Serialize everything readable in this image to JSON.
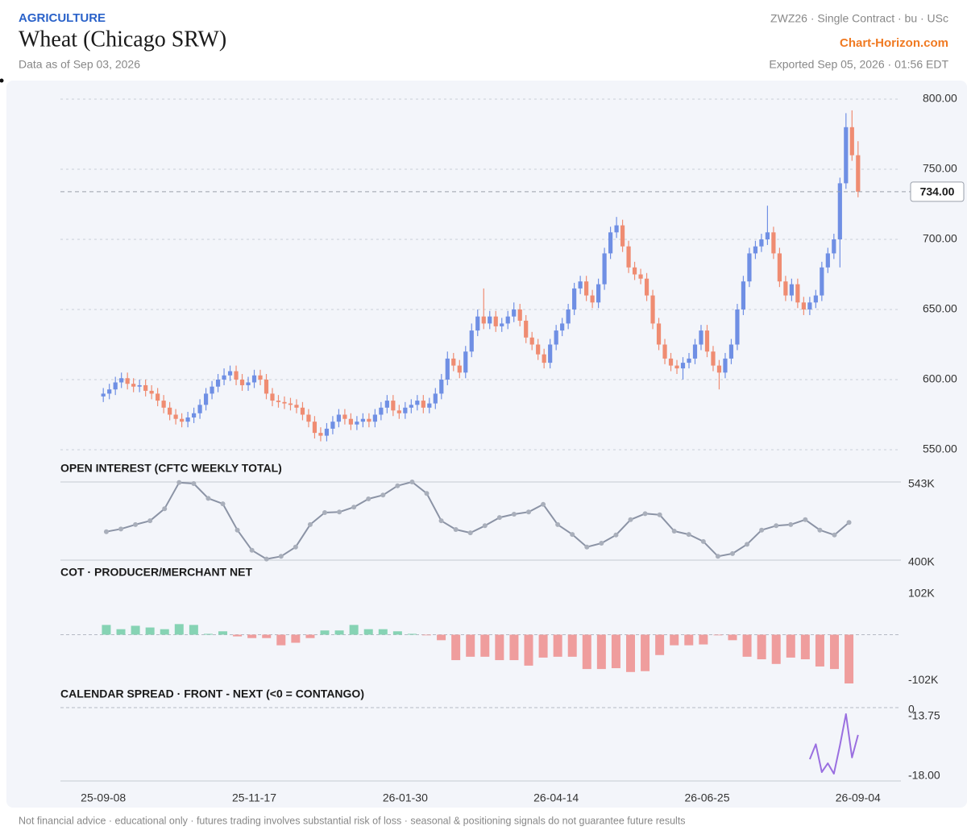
{
  "header": {
    "category": "AGRICULTURE",
    "title": "Wheat (Chicago SRW)",
    "subtitle": "Data as of Sep 03, 2026",
    "contract": "ZWZ26 · Single Contract · bu · USc",
    "brand": "Chart-Horizon.com",
    "exported": "Exported Sep 05, 2026 · 01:56 EDT"
  },
  "footer": "Not financial advice · educational only · futures trading involves substantial risk of loss · seasonal & positioning signals do not guarantee future results",
  "chart_data": [
    {
      "type": "candlestick",
      "up_color": "#6f8fe4",
      "down_color": "#ef8c72",
      "grid": true,
      "xlim": [
        -7.1,
        132.1
      ],
      "xticks": [
        {
          "value": 0,
          "label": "25-09-08"
        },
        {
          "value": 25,
          "label": "25-11-17"
        },
        {
          "value": 50,
          "label": "26-01-30"
        },
        {
          "value": 75,
          "label": "26-04-14"
        },
        {
          "value": 100,
          "label": "26-06-25"
        },
        {
          "value": 125,
          "label": "26-09-04"
        }
      ],
      "ylim": [
        550,
        800
      ],
      "yticks": [
        {
          "value": 550,
          "label": "550.00"
        },
        {
          "value": 600,
          "label": "600.00"
        },
        {
          "value": 650,
          "label": "650.00"
        },
        {
          "value": 700,
          "label": "700.00"
        },
        {
          "value": 750,
          "label": "750.00"
        },
        {
          "value": 800,
          "label": "800.00"
        }
      ],
      "last": {
        "value": 734,
        "label": "734.00"
      },
      "candles": [
        [
          588,
          594,
          584,
          590
        ],
        [
          590,
          597,
          586,
          593
        ],
        [
          593,
          602,
          589,
          598
        ],
        [
          598,
          605,
          594,
          601
        ],
        [
          601,
          605,
          593,
          597
        ],
        [
          597,
          601,
          591,
          595
        ],
        [
          595,
          600,
          591,
          596
        ],
        [
          596,
          600,
          588,
          592
        ],
        [
          592,
          596,
          586,
          590
        ],
        [
          590,
          594,
          581,
          585
        ],
        [
          585,
          589,
          576,
          580
        ],
        [
          580,
          584,
          571,
          575
        ],
        [
          575,
          579,
          568,
          572
        ],
        [
          572,
          576,
          566,
          570
        ],
        [
          570,
          577,
          566,
          573
        ],
        [
          573,
          580,
          569,
          576
        ],
        [
          576,
          586,
          572,
          582
        ],
        [
          582,
          594,
          578,
          590
        ],
        [
          590,
          599,
          586,
          595
        ],
        [
          595,
          604,
          591,
          600
        ],
        [
          600,
          608,
          596,
          603
        ],
        [
          603,
          610,
          599,
          606
        ],
        [
          606,
          610,
          596,
          600
        ],
        [
          600,
          604,
          592,
          596
        ],
        [
          596,
          602,
          592,
          598
        ],
        [
          598,
          607,
          594,
          603
        ],
        [
          603,
          607,
          596,
          600
        ],
        [
          600,
          604,
          586,
          590
        ],
        [
          590,
          594,
          581,
          585
        ],
        [
          585,
          589,
          580,
          584
        ],
        [
          584,
          588,
          579,
          583
        ],
        [
          583,
          587,
          578,
          582
        ],
        [
          582,
          586,
          576,
          580
        ],
        [
          580,
          584,
          571,
          575
        ],
        [
          575,
          579,
          566,
          570
        ],
        [
          570,
          574,
          558,
          562
        ],
        [
          562,
          566,
          556,
          560
        ],
        [
          560,
          569,
          556,
          565
        ],
        [
          565,
          574,
          561,
          570
        ],
        [
          570,
          579,
          566,
          575
        ],
        [
          575,
          579,
          568,
          572
        ],
        [
          572,
          576,
          564,
          568
        ],
        [
          568,
          574,
          564,
          570
        ],
        [
          570,
          576,
          566,
          572
        ],
        [
          572,
          576,
          566,
          570
        ],
        [
          570,
          579,
          566,
          575
        ],
        [
          575,
          584,
          571,
          580
        ],
        [
          580,
          589,
          576,
          585
        ],
        [
          585,
          589,
          574,
          578
        ],
        [
          578,
          582,
          572,
          576
        ],
        [
          576,
          584,
          572,
          580
        ],
        [
          580,
          586,
          576,
          582
        ],
        [
          582,
          589,
          578,
          585
        ],
        [
          585,
          589,
          576,
          580
        ],
        [
          580,
          587,
          576,
          583
        ],
        [
          583,
          594,
          579,
          590
        ],
        [
          590,
          604,
          586,
          600
        ],
        [
          600,
          620,
          596,
          615
        ],
        [
          615,
          619,
          606,
          610
        ],
        [
          610,
          614,
          601,
          605
        ],
        [
          605,
          624,
          601,
          620
        ],
        [
          620,
          640,
          616,
          635
        ],
        [
          635,
          650,
          631,
          645
        ],
        [
          645,
          665,
          636,
          640
        ],
        [
          640,
          649,
          636,
          645
        ],
        [
          645,
          649,
          634,
          638
        ],
        [
          638,
          644,
          634,
          640
        ],
        [
          640,
          649,
          636,
          645
        ],
        [
          645,
          655,
          641,
          650
        ],
        [
          650,
          654,
          638,
          642
        ],
        [
          642,
          646,
          626,
          630
        ],
        [
          630,
          634,
          621,
          625
        ],
        [
          625,
          629,
          614,
          618
        ],
        [
          618,
          622,
          608,
          612
        ],
        [
          612,
          629,
          608,
          625
        ],
        [
          625,
          639,
          621,
          635
        ],
        [
          635,
          644,
          631,
          640
        ],
        [
          640,
          654,
          636,
          650
        ],
        [
          650,
          669,
          646,
          665
        ],
        [
          665,
          674,
          661,
          670
        ],
        [
          670,
          674,
          656,
          660
        ],
        [
          660,
          664,
          651,
          655
        ],
        [
          655,
          672,
          651,
          668
        ],
        [
          668,
          694,
          664,
          690
        ],
        [
          690,
          709,
          686,
          705
        ],
        [
          705,
          716,
          701,
          710
        ],
        [
          710,
          714,
          691,
          695
        ],
        [
          695,
          699,
          676,
          680
        ],
        [
          680,
          684,
          671,
          675
        ],
        [
          675,
          679,
          668,
          672
        ],
        [
          672,
          676,
          656,
          660
        ],
        [
          660,
          664,
          636,
          640
        ],
        [
          640,
          644,
          621,
          625
        ],
        [
          625,
          629,
          611,
          615
        ],
        [
          615,
          619,
          606,
          610
        ],
        [
          610,
          614,
          604,
          608
        ],
        [
          608,
          616,
          600,
          612
        ],
        [
          612,
          619,
          608,
          615
        ],
        [
          615,
          629,
          611,
          625
        ],
        [
          625,
          639,
          621,
          635
        ],
        [
          635,
          639,
          616,
          620
        ],
        [
          620,
          624,
          606,
          610
        ],
        [
          610,
          614,
          593,
          605
        ],
        [
          605,
          619,
          601,
          615
        ],
        [
          615,
          629,
          611,
          625
        ],
        [
          625,
          654,
          621,
          650
        ],
        [
          650,
          674,
          646,
          670
        ],
        [
          670,
          694,
          666,
          690
        ],
        [
          690,
          699,
          686,
          695
        ],
        [
          695,
          704,
          691,
          700
        ],
        [
          700,
          724,
          696,
          705
        ],
        [
          705,
          709,
          686,
          690
        ],
        [
          690,
          694,
          666,
          670
        ],
        [
          670,
          674,
          656,
          660
        ],
        [
          660,
          672,
          656,
          668
        ],
        [
          668,
          672,
          651,
          655
        ],
        [
          655,
          659,
          646,
          650
        ],
        [
          650,
          659,
          646,
          655
        ],
        [
          655,
          664,
          651,
          660
        ],
        [
          660,
          684,
          656,
          680
        ],
        [
          680,
          694,
          676,
          690
        ],
        [
          690,
          704,
          686,
          700
        ],
        [
          700,
          744,
          680,
          740
        ],
        [
          740,
          790,
          736,
          780
        ],
        [
          780,
          792,
          756,
          760
        ],
        [
          760,
          770,
          730,
          734
        ]
      ]
    },
    {
      "type": "line",
      "title": "OPEN INTEREST (CFTC WEEKLY TOTAL)",
      "color": "#8b93a5",
      "grid": true,
      "ylim": [
        400000,
        543000
      ],
      "yticks": [
        {
          "value": 543000,
          "label": "543K"
        },
        {
          "value": 400000,
          "label": "400K"
        }
      ],
      "values": [
        452000,
        457000,
        465000,
        472000,
        494000,
        542000,
        540000,
        513000,
        503000,
        455000,
        418000,
        402000,
        407000,
        424000,
        465000,
        487000,
        488000,
        497000,
        512000,
        519000,
        536000,
        543000,
        522000,
        472000,
        456000,
        450000,
        463000,
        478000,
        484000,
        488000,
        502000,
        465000,
        447000,
        424000,
        431000,
        446000,
        474000,
        485000,
        483000,
        453000,
        447000,
        434000,
        407000,
        412000,
        429000,
        455000,
        463000,
        465000,
        474000,
        455000,
        446000,
        469000
      ]
    },
    {
      "type": "bar",
      "title": "COT · PRODUCER/MERCHANT NET",
      "pos_color": "#86d3b4",
      "neg_color": "#ef9d9d",
      "zero_line": true,
      "ylim": [
        -115000,
        115000
      ],
      "yticks": [
        {
          "value": 102000,
          "label": "102K"
        },
        {
          "value": -102000,
          "label": "-102K"
        }
      ],
      "values": [
        23000,
        13000,
        21000,
        17000,
        13000,
        25000,
        23000,
        2000,
        8000,
        -4000,
        -8000,
        -8000,
        -25000,
        -19000,
        -8000,
        10000,
        10000,
        23000,
        13000,
        13000,
        8000,
        2000,
        -1000,
        -13000,
        -60000,
        -52000,
        -52000,
        -60000,
        -60000,
        -73000,
        -54000,
        -52000,
        -52000,
        -81000,
        -81000,
        -79000,
        -88000,
        -86000,
        -48000,
        -25000,
        -25000,
        -23000,
        -1000,
        -13000,
        -52000,
        -58000,
        -69000,
        -54000,
        -58000,
        -75000,
        -81000,
        -115000
      ]
    },
    {
      "type": "line",
      "title": "CALENDAR SPREAD · FRONT - NEXT (<0 = CONTANGO)",
      "color": "#9a6fe0",
      "zero_line": true,
      "ylim": [
        -18.52,
        -13.29
      ],
      "yticks": [
        0,
        -13.75,
        {
          "value": -18,
          "label": "-18.00"
        }
      ],
      "x": [
        117,
        118,
        119,
        120,
        121,
        122,
        123,
        124,
        125
      ],
      "values": [
        -16.97,
        -15.9,
        -17.89,
        -17.26,
        -18.0,
        -15.99,
        -13.75,
        -16.85,
        -15.24
      ]
    }
  ]
}
